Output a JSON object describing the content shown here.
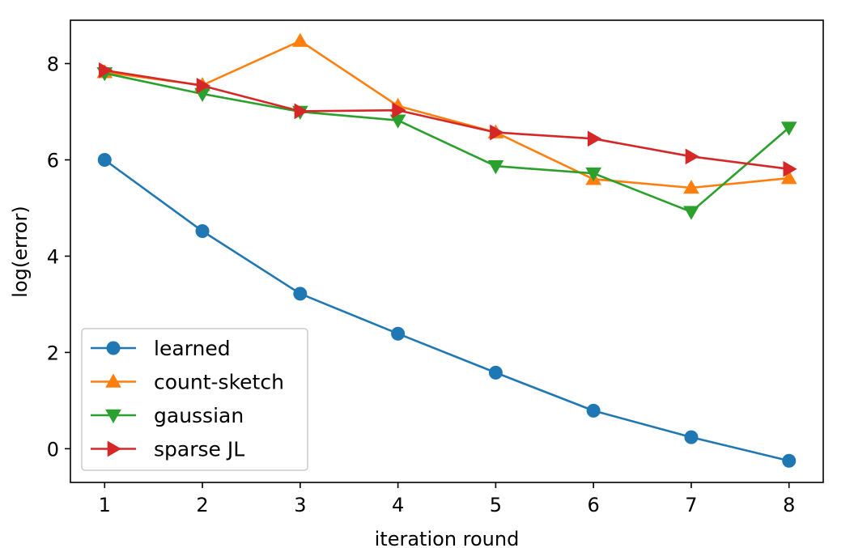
{
  "chart_data": {
    "type": "line",
    "title": "",
    "xlabel": "iteration round",
    "ylabel": "log(error)",
    "x": [
      1,
      2,
      3,
      4,
      5,
      6,
      7,
      8
    ],
    "xlim": [
      0.65,
      8.35
    ],
    "ylim": [
      -0.7,
      8.9
    ],
    "xticks": [
      "1",
      "2",
      "3",
      "4",
      "5",
      "6",
      "7",
      "8"
    ],
    "yticks": [
      "0",
      "2",
      "4",
      "6",
      "8"
    ],
    "grid": false,
    "legend_position": "lower-left",
    "series": [
      {
        "name": "learned",
        "color": "#1f77b4",
        "marker": "circle",
        "values": [
          6.0,
          4.52,
          3.22,
          2.39,
          1.58,
          0.79,
          0.24,
          -0.25
        ]
      },
      {
        "name": "count-sketch",
        "color": "#ff7f0e",
        "marker": "triangle-up",
        "values": [
          7.82,
          7.55,
          8.47,
          7.12,
          6.57,
          5.6,
          5.42,
          5.62
        ]
      },
      {
        "name": "gaussian",
        "color": "#2ca02c",
        "marker": "triangle-down",
        "values": [
          7.8,
          7.37,
          7.0,
          6.82,
          5.87,
          5.72,
          4.92,
          6.67
        ]
      },
      {
        "name": "sparse JL",
        "color": "#d62728",
        "marker": "triangle-right",
        "values": [
          7.86,
          7.54,
          7.01,
          7.03,
          6.57,
          6.44,
          6.07,
          5.81
        ]
      }
    ]
  }
}
